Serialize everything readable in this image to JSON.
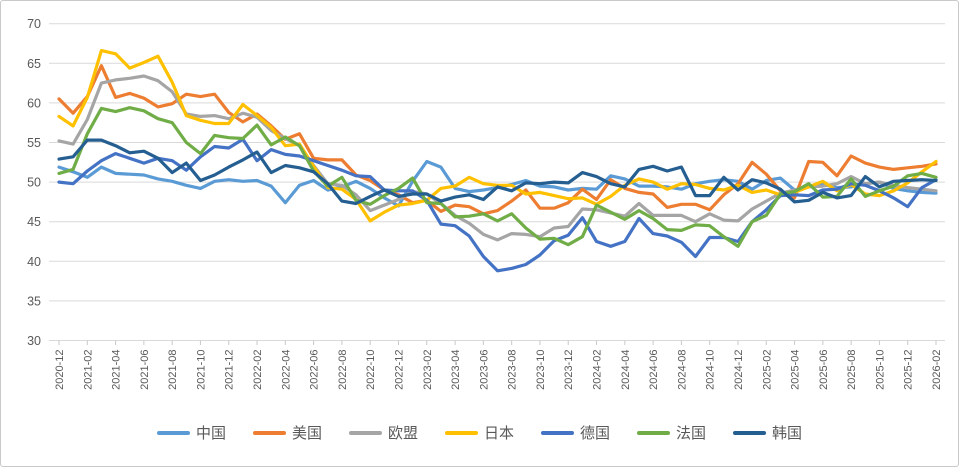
{
  "chart_data": {
    "type": "line",
    "title": "",
    "xlabel": "",
    "ylabel": "",
    "ylim": [
      30,
      70
    ],
    "y_ticks": [
      30,
      35,
      40,
      45,
      50,
      55,
      60,
      65,
      70
    ],
    "grid": true,
    "legend_position": "bottom",
    "x": [
      "2020-12",
      "2021-01",
      "2021-02",
      "2021-03",
      "2021-04",
      "2021-05",
      "2021-06",
      "2021-07",
      "2021-08",
      "2021-09",
      "2021-10",
      "2021-11",
      "2021-12",
      "2022-01",
      "2022-02",
      "2022-03",
      "2022-04",
      "2022-05",
      "2022-06",
      "2022-07",
      "2022-08",
      "2022-09",
      "2022-10",
      "2022-11",
      "2022-12",
      "2023-01",
      "2023-02",
      "2023-03",
      "2023-04",
      "2023-05",
      "2023-06",
      "2023-07",
      "2023-08",
      "2023-09",
      "2023-10",
      "2023-11",
      "2023-12",
      "2024-01",
      "2024-02",
      "2024-03",
      "2024-04",
      "2024-05",
      "2024-06",
      "2024-07",
      "2024-08",
      "2024-09",
      "2024-10",
      "2024-11",
      "2024-12",
      "2025-01",
      "2025-02",
      "2025-03",
      "2025-04",
      "2025-05",
      "2025-06",
      "2025-07",
      "2025-08",
      "2025-09",
      "2025-10",
      "2025-11",
      "2025-12",
      "2026-01",
      "2026-02"
    ],
    "x_tick_labels": [
      "2020-12",
      "2021-02",
      "2021-04",
      "2021-06",
      "2021-08",
      "2021-10",
      "2021-12",
      "2022-02",
      "2022-04",
      "2022-06",
      "2022-08",
      "2022-10",
      "2022-12",
      "2023-02",
      "2023-04",
      "2023-06",
      "2023-08",
      "2023-10",
      "2023-12",
      "2024-02",
      "2024-04",
      "2024-06",
      "2024-08",
      "2024-10",
      "2024-12",
      "2025-02",
      "2025-04",
      "2025-06",
      "2025-08",
      "2025-10",
      "2025-12",
      "2026-02"
    ],
    "series": [
      {
        "name": "中国",
        "color": "#5B9BD5",
        "values": [
          51.9,
          51.3,
          50.6,
          51.9,
          51.1,
          51.0,
          50.9,
          50.4,
          50.1,
          49.6,
          49.2,
          50.1,
          50.3,
          50.1,
          50.2,
          49.5,
          47.4,
          49.6,
          50.2,
          49.0,
          49.4,
          50.1,
          49.2,
          48.0,
          47.0,
          50.1,
          52.6,
          51.9,
          49.2,
          48.8,
          49.0,
          49.3,
          49.7,
          50.2,
          49.5,
          49.4,
          49.0,
          49.2,
          49.1,
          50.8,
          50.4,
          49.5,
          49.5,
          49.4,
          49.1,
          49.8,
          50.1,
          50.3,
          50.1,
          49.1,
          50.2,
          50.5,
          49.0,
          49.5,
          49.7,
          49.3,
          49.4,
          49.8,
          50.0,
          49.2,
          48.9,
          48.7,
          48.6
        ]
      },
      {
        "name": "美国",
        "color": "#ED7D31",
        "values": [
          60.5,
          58.7,
          60.8,
          64.7,
          60.7,
          61.2,
          60.6,
          59.5,
          59.9,
          61.1,
          60.8,
          61.1,
          58.8,
          57.6,
          58.6,
          57.1,
          55.4,
          56.1,
          53.0,
          52.8,
          52.8,
          50.9,
          50.2,
          49.0,
          48.4,
          47.4,
          47.7,
          46.3,
          47.1,
          46.9,
          46.0,
          46.4,
          47.6,
          49.0,
          46.7,
          46.7,
          47.4,
          49.1,
          47.8,
          50.3,
          49.2,
          48.7,
          48.5,
          46.8,
          47.2,
          47.2,
          46.5,
          48.4,
          49.8,
          52.5,
          51.0,
          48.9,
          48.0,
          52.6,
          52.5,
          50.8,
          53.3,
          52.4,
          51.9,
          51.6,
          51.8,
          52.0,
          52.3
        ]
      },
      {
        "name": "欧盟",
        "color": "#A5A5A5",
        "values": [
          55.2,
          54.8,
          57.9,
          62.5,
          62.9,
          63.1,
          63.4,
          62.8,
          61.4,
          58.6,
          58.3,
          58.4,
          58.0,
          58.7,
          58.2,
          56.5,
          55.5,
          54.6,
          52.1,
          49.8,
          49.6,
          48.4,
          46.4,
          47.1,
          47.8,
          48.8,
          48.5,
          47.3,
          45.8,
          44.8,
          43.4,
          42.7,
          43.5,
          43.4,
          43.1,
          44.2,
          44.4,
          46.6,
          46.5,
          46.1,
          45.7,
          47.3,
          45.8,
          45.8,
          45.8,
          45.0,
          46.0,
          45.2,
          45.1,
          46.6,
          47.6,
          48.6,
          49.0,
          49.4,
          49.5,
          49.8,
          50.7,
          49.8,
          50.0,
          49.6,
          49.3,
          49.1,
          48.9
        ]
      },
      {
        "name": "日本",
        "color": "#FFC000",
        "values": [
          58.3,
          57.1,
          60.7,
          66.6,
          66.2,
          64.4,
          65.1,
          65.9,
          62.6,
          58.4,
          57.8,
          57.4,
          57.4,
          59.8,
          58.4,
          56.9,
          54.6,
          54.8,
          52.0,
          49.3,
          49.1,
          47.8,
          45.1,
          46.2,
          47.1,
          47.3,
          47.7,
          49.2,
          49.5,
          50.6,
          49.8,
          49.6,
          49.6,
          48.5,
          48.7,
          48.3,
          47.9,
          48.0,
          47.2,
          48.2,
          49.6,
          50.4,
          50.0,
          49.1,
          49.8,
          49.7,
          49.2,
          49.0,
          49.6,
          48.7,
          49.0,
          48.4,
          48.7,
          49.4,
          50.1,
          48.9,
          49.7,
          48.5,
          48.3,
          48.9,
          49.9,
          51.3,
          52.6
        ]
      },
      {
        "name": "德国",
        "color": "#4472C4",
        "values": [
          50.0,
          49.8,
          51.4,
          52.7,
          53.6,
          53.0,
          52.4,
          53.0,
          52.7,
          51.5,
          53.2,
          54.5,
          54.3,
          55.4,
          52.7,
          54.1,
          53.5,
          53.3,
          52.7,
          52.1,
          51.5,
          50.8,
          50.7,
          49.0,
          48.9,
          48.9,
          47.7,
          44.7,
          44.5,
          43.2,
          40.6,
          38.8,
          39.1,
          39.6,
          40.8,
          42.6,
          43.3,
          45.5,
          42.5,
          41.9,
          42.5,
          45.4,
          43.5,
          43.2,
          42.4,
          40.6,
          43.0,
          43.0,
          42.5,
          45.0,
          46.5,
          48.3,
          48.4,
          48.3,
          49.0,
          49.1,
          49.8,
          49.6,
          48.9,
          48.0,
          46.9,
          49.3,
          50.3
        ]
      },
      {
        "name": "法国",
        "color": "#70AD47",
        "values": [
          51.1,
          51.6,
          56.1,
          59.3,
          58.9,
          59.4,
          59.0,
          58.0,
          57.5,
          55.0,
          53.6,
          55.9,
          55.6,
          55.5,
          57.2,
          54.7,
          55.7,
          54.6,
          51.4,
          49.5,
          50.6,
          47.7,
          47.2,
          48.3,
          49.2,
          50.5,
          47.4,
          47.3,
          45.6,
          45.7,
          46.0,
          45.1,
          46.0,
          44.2,
          42.8,
          42.9,
          42.1,
          43.1,
          47.1,
          46.2,
          45.3,
          46.4,
          45.4,
          44.0,
          43.9,
          44.6,
          44.5,
          43.1,
          41.9,
          45.0,
          45.8,
          48.5,
          48.8,
          49.8,
          48.1,
          48.2,
          50.4,
          48.2,
          48.9,
          49.5,
          50.8,
          51.1,
          50.6
        ]
      },
      {
        "name": "韩国",
        "color": "#255E91",
        "values": [
          52.9,
          53.2,
          55.3,
          55.3,
          54.6,
          53.7,
          53.9,
          53.0,
          51.2,
          52.4,
          50.2,
          50.9,
          51.9,
          52.8,
          53.8,
          51.2,
          52.1,
          51.8,
          51.3,
          49.8,
          47.6,
          47.3,
          48.2,
          49.0,
          48.2,
          48.5,
          48.5,
          47.6,
          48.1,
          48.4,
          47.8,
          49.4,
          48.9,
          49.9,
          49.8,
          50.0,
          49.9,
          51.2,
          50.7,
          49.8,
          49.4,
          51.6,
          52.0,
          51.4,
          51.9,
          48.3,
          48.3,
          50.6,
          49.0,
          50.3,
          49.9,
          49.1,
          47.5,
          47.7,
          48.7,
          48.0,
          48.3,
          50.7,
          49.4,
          50.1,
          50.2,
          50.3,
          50.2
        ]
      }
    ]
  },
  "colors": {
    "gridline": "#D9D9D9",
    "axis_line": "#D9D9D9",
    "tick_mark": "#C9C9C9",
    "axis_text": "#595959",
    "legend_text": "#595959",
    "background": "#FFFFFF",
    "frame_border": "#C9C9C9"
  }
}
